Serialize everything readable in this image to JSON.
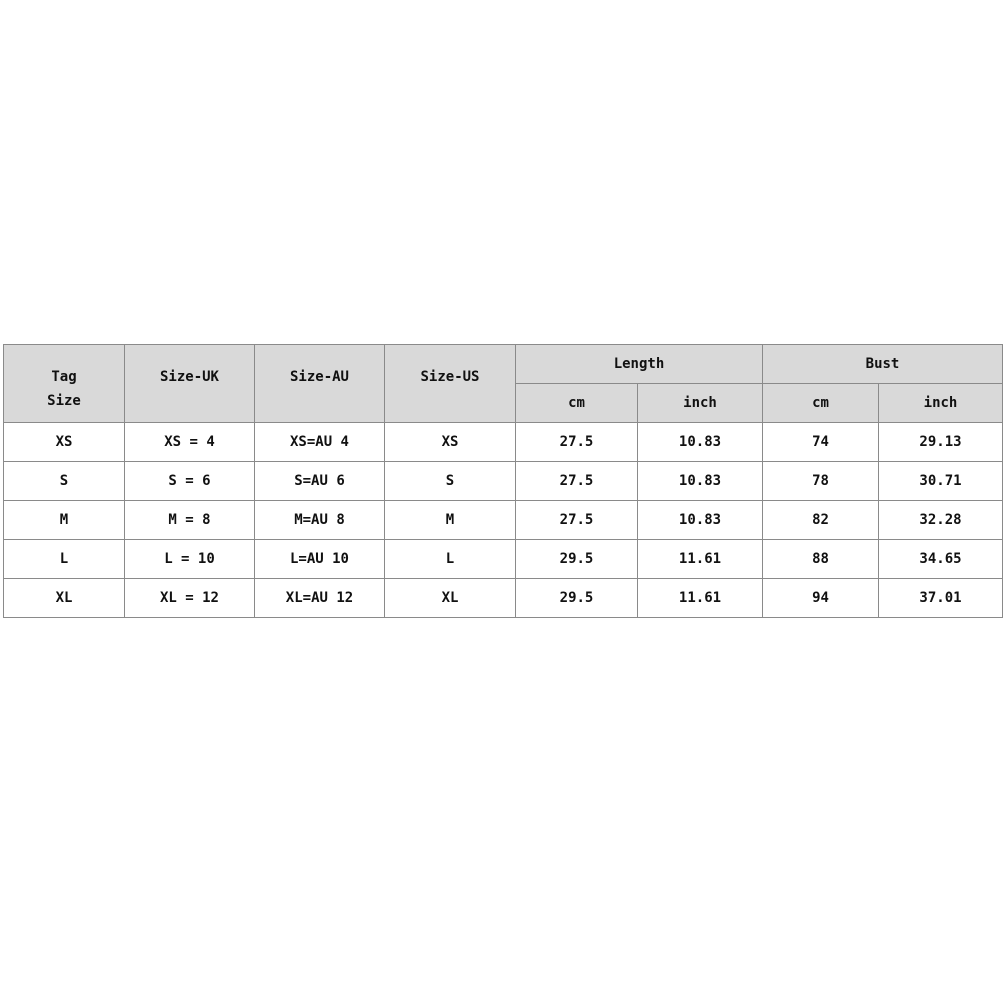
{
  "headers": {
    "tag_size": [
      "Tag",
      "Size"
    ],
    "size_uk": "Size-UK",
    "size_au": "Size-AU",
    "size_us": "Size-US",
    "length": "Length",
    "bust": "Bust",
    "sub": [
      "cm",
      "inch",
      "cm",
      "inch"
    ]
  },
  "rows": [
    [
      "XS",
      "XS = 4",
      "XS=AU 4",
      "XS",
      "27.5",
      "10.83",
      "74",
      "29.13"
    ],
    [
      "S",
      "S = 6",
      "S=AU 6",
      "S",
      "27.5",
      "10.83",
      "78",
      "30.71"
    ],
    [
      "M",
      "M = 8",
      "M=AU 8",
      "M",
      "27.5",
      "10.83",
      "82",
      "32.28"
    ],
    [
      "L",
      "L = 10",
      "L=AU 10",
      "L",
      "29.5",
      "11.61",
      "88",
      "34.65"
    ],
    [
      "XL",
      "XL = 12",
      "XL=AU 12",
      "XL",
      "29.5",
      "11.61",
      "94",
      "37.01"
    ]
  ]
}
